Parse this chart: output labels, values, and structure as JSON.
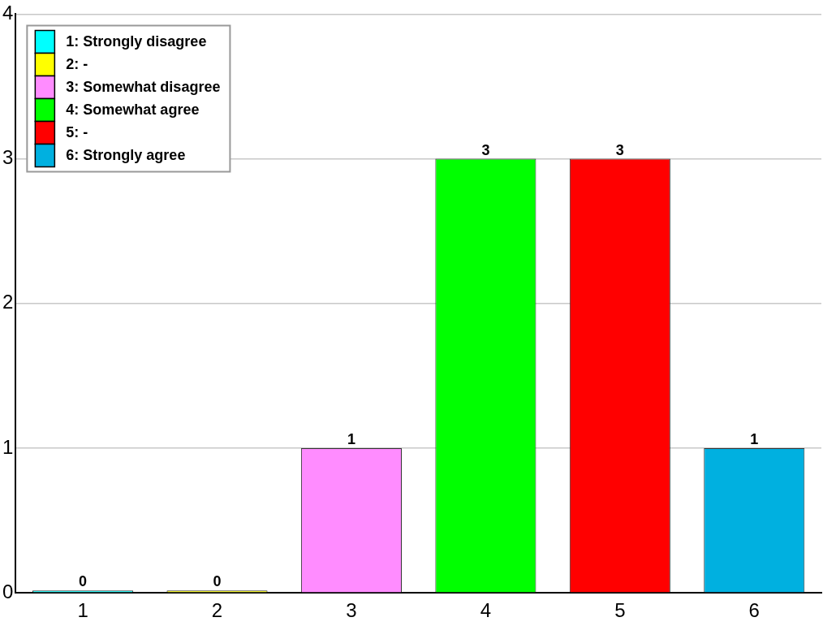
{
  "chart_data": {
    "type": "bar",
    "categories": [
      "1",
      "2",
      "3",
      "4",
      "5",
      "6"
    ],
    "series": [
      {
        "name": "1: Strongly disagree",
        "color": "#00ffff",
        "values": [
          0,
          null,
          null,
          null,
          null,
          null
        ]
      },
      {
        "name": "2: -",
        "color": "#ffff00",
        "values": [
          null,
          0,
          null,
          null,
          null,
          null
        ]
      },
      {
        "name": "3: Somewhat disagree",
        "color": "#ff8cff",
        "values": [
          null,
          null,
          1,
          null,
          null,
          null
        ]
      },
      {
        "name": "4: Somewhat agree",
        "color": "#00ff00",
        "values": [
          null,
          null,
          null,
          3,
          null,
          null
        ]
      },
      {
        "name": "5: -",
        "color": "#ff0000",
        "values": [
          null,
          null,
          null,
          null,
          3,
          null
        ]
      },
      {
        "name": "6: Strongly agree",
        "color": "#00b0e0",
        "values": [
          null,
          null,
          null,
          null,
          null,
          1
        ]
      }
    ],
    "ylim": [
      0,
      4
    ],
    "yticks": [
      0,
      1,
      2,
      3,
      4
    ],
    "grid": "y",
    "legend": "top left",
    "data_labels": true
  }
}
